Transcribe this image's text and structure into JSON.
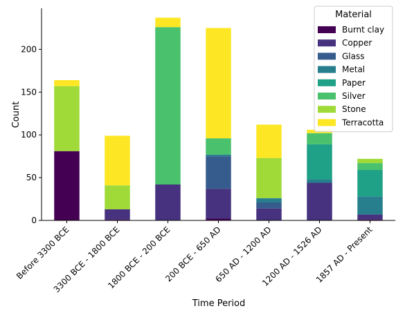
{
  "chart_data": {
    "type": "bar",
    "stacked": true,
    "xlabel": "Time Period",
    "ylabel": "Count",
    "ylim": [
      0,
      248
    ],
    "yticks": [
      0,
      50,
      100,
      150,
      200
    ],
    "categories": [
      "Before 3300 BCE",
      "3300 BCE - 1800 BCE",
      "1800 BCE - 200 BCE",
      "200 BCE - 650 AD",
      "650 AD - 1200 AD",
      "1200 AD - 1526 AD",
      "1857 AD - Present"
    ],
    "series": [
      {
        "name": "Burnt clay",
        "color": "#440154",
        "values": [
          81,
          1,
          0,
          2,
          0,
          0,
          1
        ]
      },
      {
        "name": "Copper",
        "color": "#46327e",
        "values": [
          0,
          12,
          42,
          35,
          14,
          44,
          6
        ]
      },
      {
        "name": "Glass",
        "color": "#365c8d",
        "values": [
          0,
          0,
          0,
          38,
          7,
          0,
          0
        ]
      },
      {
        "name": "Metal",
        "color": "#277f8e",
        "values": [
          0,
          0,
          0,
          2,
          5,
          4,
          21
        ]
      },
      {
        "name": "Paper",
        "color": "#1fa187",
        "values": [
          0,
          0,
          0,
          0,
          0,
          41,
          31
        ]
      },
      {
        "name": "Silver",
        "color": "#4ac16d",
        "values": [
          0,
          0,
          184,
          19,
          0,
          13,
          8
        ]
      },
      {
        "name": "Stone",
        "color": "#a0da39",
        "values": [
          76,
          28,
          0,
          0,
          47,
          0,
          5
        ]
      },
      {
        "name": "Terracotta",
        "color": "#fde725",
        "values": [
          7,
          58,
          11,
          129,
          39,
          4,
          0
        ]
      }
    ],
    "legend": {
      "title": "Material",
      "placement": "top-right"
    },
    "grid": false
  }
}
